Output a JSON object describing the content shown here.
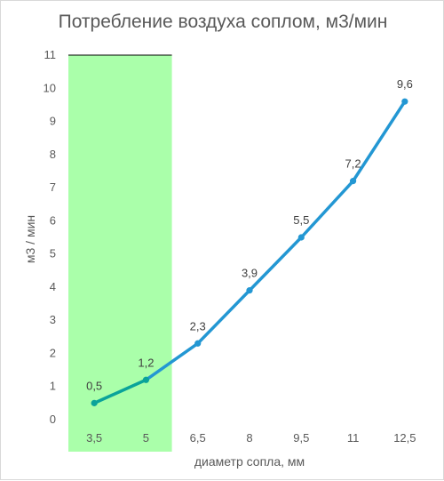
{
  "chart_data": {
    "type": "line",
    "title": "Потребление воздуха соплом, м3/мин",
    "xlabel": "диаметр сопла, мм",
    "ylabel": "м3 / мин",
    "categories": [
      "3,5",
      "5",
      "6,5",
      "8",
      "9,5",
      "11",
      "12,5"
    ],
    "series": [
      {
        "values": [
          0.5,
          1.2,
          2.3,
          3.9,
          5.5,
          7.2,
          9.6
        ]
      }
    ],
    "data_labels": [
      "0,5",
      "1,2",
      "2,3",
      "3,9",
      "5,5",
      "7,2",
      "9,6"
    ],
    "ylim": [
      0,
      11
    ],
    "yticks": [
      0,
      1,
      2,
      3,
      4,
      5,
      6,
      7,
      8,
      9,
      10,
      11
    ],
    "grid": false,
    "highlight": {
      "from_category": "3,5",
      "to_category": "5",
      "color": "#aaffaa"
    },
    "colors": {
      "line": "#2397d3",
      "line_in_highlight": "#0aa39a",
      "marker": "#2397d3"
    }
  }
}
